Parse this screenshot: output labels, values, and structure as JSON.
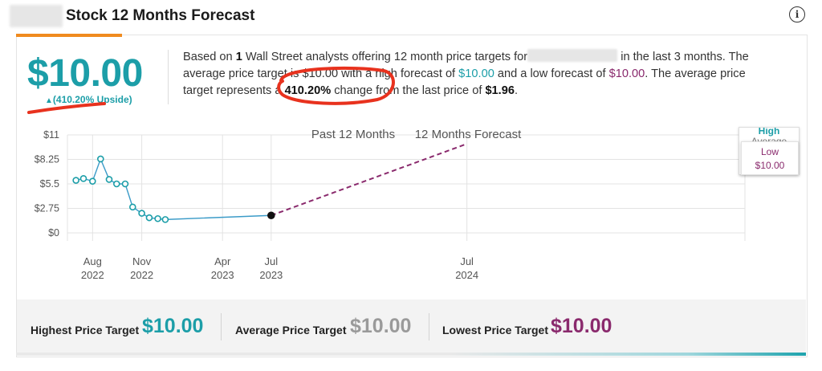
{
  "header": {
    "title": "Stock 12 Months Forecast",
    "info_icon": "info-circle-icon"
  },
  "summary": {
    "price": "$10.00",
    "upside_arrow": "▲",
    "upside": "(410.20% Upside)",
    "t1": "Based on ",
    "analysts": "1",
    "t2": " Wall Street analysts offering 12 month price targets for",
    "t3": " in the last 3 months. The average price target is ",
    "avg": "$10.00",
    "t4": " with a high forecast of ",
    "high": "$10.00",
    "t5": " and a low forecast of ",
    "low": "$10.00",
    "t6": ". The average price target represents a ",
    "change": "410.20%",
    "t7": " change from the last price of ",
    "last": "$1.96",
    "t8": "."
  },
  "chart_data": {
    "type": "line",
    "sections": [
      "Past 12 Months",
      "12 Months Forecast"
    ],
    "y_ticks": [
      "$11",
      "$8.25",
      "$5.5",
      "$2.75",
      "$0"
    ],
    "ylim": [
      0,
      11
    ],
    "x_ticks": [
      {
        "month": "Aug",
        "year": "2022"
      },
      {
        "month": "Nov",
        "year": "2022"
      },
      {
        "month": "Apr",
        "year": "2023"
      },
      {
        "month": "Jul",
        "year": "2023"
      },
      {
        "month": "Jul",
        "year": "2024"
      }
    ],
    "series": [
      {
        "values": [
          {
            "x": "2022-07-01",
            "y": 5.9
          },
          {
            "x": "2022-07-15",
            "y": 6.1
          },
          {
            "x": "2022-08-01",
            "y": 5.8
          },
          {
            "x": "2022-08-16",
            "y": 8.3
          },
          {
            "x": "2022-09-01",
            "y": 6.0
          },
          {
            "x": "2022-09-15",
            "y": 5.5
          },
          {
            "x": "2022-10-01",
            "y": 5.5
          },
          {
            "x": "2022-10-15",
            "y": 2.9
          },
          {
            "x": "2022-11-01",
            "y": 2.2
          },
          {
            "x": "2022-11-15",
            "y": 1.7
          },
          {
            "x": "2022-12-01",
            "y": 1.6
          },
          {
            "x": "2022-12-15",
            "y": 1.5
          },
          {
            "x": "2023-07-01",
            "y": 1.96
          }
        ]
      },
      {
        "values": [
          {
            "x": "2023-07-01",
            "y": 1.96
          },
          {
            "x": "2024-07-01",
            "y": 10.0
          }
        ]
      }
    ],
    "legend": {
      "high": "High",
      "average": "Average",
      "low_label": "Low",
      "low_value": "$10.00"
    },
    "colors": {
      "history": "#3b9bc8",
      "forecast": "#8a2a6d",
      "grid": "#e3e3e3"
    }
  },
  "footer": {
    "highest_label": "Highest Price Target",
    "highest_value": "$10.00",
    "average_label": "Average Price Target",
    "average_value": "$10.00",
    "lowest_label": "Lowest Price Target",
    "lowest_value": "$10.00"
  },
  "colors": {
    "teal": "#1c9ea8",
    "purple": "#8a2a6d",
    "gray_value": "#9a9a9a",
    "accent_orange": "#f08b1f",
    "ink_red": "#e8321e"
  }
}
